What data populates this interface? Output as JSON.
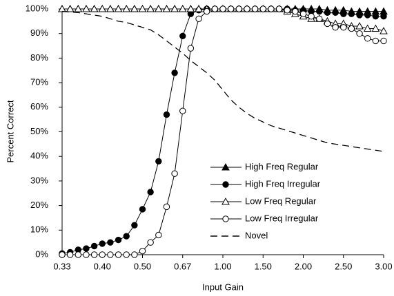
{
  "chart_data": {
    "type": "line",
    "xlabel": "Input Gain",
    "ylabel": "Percent Correct",
    "categories": [
      "0.33",
      null,
      null,
      null,
      null,
      "0.40",
      null,
      null,
      null,
      null,
      "0.50",
      null,
      null,
      null,
      null,
      "0.67",
      null,
      null,
      null,
      null,
      "1.00",
      null,
      null,
      null,
      null,
      "1.50",
      null,
      null,
      null,
      null,
      "2.00",
      null,
      null,
      null,
      null,
      "2.50",
      null,
      null,
      null,
      null,
      "3.00"
    ],
    "ylim": [
      0,
      100
    ],
    "yticks": [
      {
        "value": 0,
        "label": "0%"
      },
      {
        "value": 10,
        "label": "10%"
      },
      {
        "value": 20,
        "label": "20%"
      },
      {
        "value": 30,
        "label": "30%"
      },
      {
        "value": 40,
        "label": "40%"
      },
      {
        "value": 50,
        "label": "50%"
      },
      {
        "value": 60,
        "label": "60%"
      },
      {
        "value": 70,
        "label": "70%"
      },
      {
        "value": 80,
        "label": "80%"
      },
      {
        "value": 90,
        "label": "90%"
      },
      {
        "value": 100,
        "label": "100%"
      }
    ],
    "legend": "lower right",
    "series": [
      {
        "name": "High Freq Regular",
        "color": "#000000",
        "marker": "triangle",
        "filled": true,
        "dashed": false,
        "values": [
          100,
          100,
          100,
          100,
          100,
          100,
          100,
          100,
          100,
          100,
          100,
          100,
          100,
          100,
          100,
          100,
          100,
          100,
          100,
          100,
          100,
          100,
          100,
          100,
          100,
          100,
          100,
          100,
          100,
          100,
          100,
          100,
          100,
          99.5,
          99.5,
          99.5,
          99,
          99,
          99,
          99,
          99
        ]
      },
      {
        "name": "High Freq Irregular",
        "color": "#000000",
        "marker": "circle",
        "filled": true,
        "dashed": false,
        "values": [
          0.5,
          1,
          2,
          2.5,
          3.5,
          4.5,
          5,
          6,
          7.5,
          12,
          18.5,
          25.5,
          38,
          57,
          74,
          89,
          98,
          99.5,
          100,
          100,
          100,
          100,
          100,
          100,
          100,
          100,
          100,
          100,
          100,
          99.5,
          99.5,
          99,
          99,
          98.5,
          98.5,
          98,
          98,
          97.5,
          97.5,
          97,
          97
        ]
      },
      {
        "name": "Low Freq Regular",
        "color": "#000000",
        "marker": "triangle",
        "filled": false,
        "dashed": false,
        "values": [
          100,
          100,
          100,
          100,
          100,
          100,
          100,
          100,
          100,
          100,
          100,
          100,
          100,
          100,
          100,
          100,
          100,
          100,
          100,
          100,
          100,
          100,
          100,
          100,
          100,
          100,
          100,
          100,
          99,
          98,
          97,
          96,
          96,
          95,
          94,
          94,
          93,
          93,
          92,
          92,
          91
        ]
      },
      {
        "name": "Low Freq Irregular",
        "color": "#000000",
        "marker": "circle",
        "filled": false,
        "dashed": false,
        "values": [
          0,
          0,
          0,
          0,
          0,
          0,
          0,
          0,
          0,
          0,
          1.5,
          5,
          8,
          19.5,
          33,
          58.5,
          84,
          96,
          99,
          100,
          100,
          100,
          100,
          100,
          100,
          100,
          100,
          100,
          99.5,
          99,
          98,
          97,
          96,
          94,
          92.5,
          92.5,
          92,
          90,
          88,
          87,
          87
        ]
      },
      {
        "name": "Novel",
        "color": "#000000",
        "marker": "none",
        "filled": false,
        "dashed": true,
        "values": [
          99,
          98.8,
          98.5,
          98,
          97.5,
          97,
          96,
          95,
          94.5,
          93.5,
          92.5,
          91.5,
          89.5,
          87,
          84.5,
          82,
          79,
          76.5,
          74,
          71,
          67,
          63,
          60,
          57.5,
          55.5,
          54,
          52.5,
          51.5,
          50.5,
          49.5,
          48.5,
          47.5,
          46.5,
          45.5,
          45,
          44.5,
          44,
          43.5,
          43,
          42.5,
          42
        ]
      }
    ]
  }
}
